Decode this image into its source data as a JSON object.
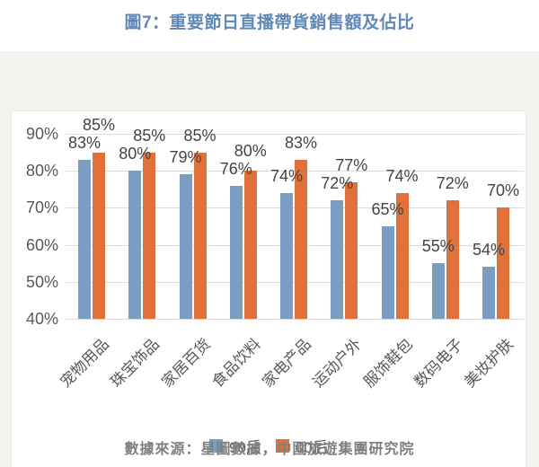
{
  "title": "圖7：重要節日直播帶貨銷售額及佔比",
  "source": "數據來源：星圖數據，中國旅遊集團研究院",
  "colors": {
    "series_90s": "#7b9cc3",
    "series_00s": "#e0713a",
    "title_text": "#6189B8",
    "gridline": "#dcdcdc",
    "axis_text": "#595959",
    "data_label_text": "#444444",
    "source_text": "#7f7f7f",
    "section_bg": "#f4f3f0",
    "panel_bg": "#ffffff"
  },
  "chart_data": {
    "type": "bar",
    "title": "圖7：重要節日直播帶貨銷售額及佔比",
    "categories": [
      "宠物用品",
      "珠宝饰品",
      "家居百货",
      "食品饮料",
      "家电产品",
      "运动户外",
      "服饰鞋包",
      "数码电子",
      "美妆护肤"
    ],
    "series": [
      {
        "name": "90后",
        "color": "#7b9cc3",
        "values": [
          83,
          80,
          79,
          76,
          74,
          72,
          65,
          55,
          54
        ]
      },
      {
        "name": "00后",
        "color": "#e0713a",
        "values": [
          85,
          85,
          85,
          80,
          83,
          77,
          74,
          72,
          70
        ]
      }
    ],
    "value_suffix": "%",
    "ylim": [
      40,
      90
    ],
    "y_tick_labels": [
      "90%",
      "80%",
      "70%",
      "60%",
      "50%",
      "40%"
    ],
    "grid": true,
    "legend_position": "bottom",
    "data_labels": "outside-end"
  }
}
